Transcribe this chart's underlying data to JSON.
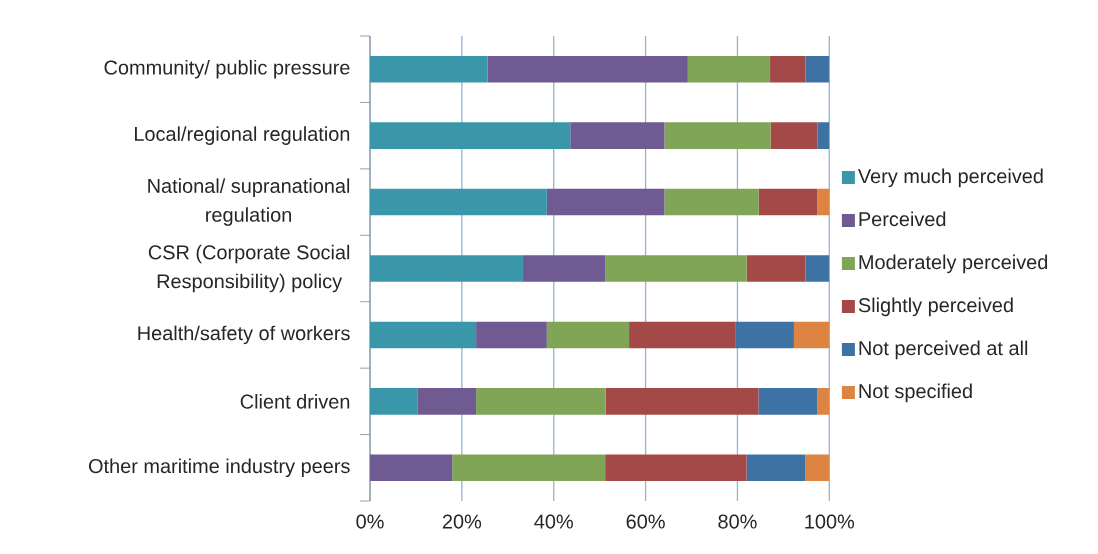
{
  "chart_data": {
    "type": "bar",
    "orientation": "horizontal",
    "stacked": true,
    "categories": [
      "Community/ public pressure",
      "Local/regional regulation",
      "National/ supranational regulation",
      "CSR (Corporate Social Responsibility) policy",
      "Health/safety of workers",
      "Client driven",
      "Other maritime industry peers"
    ],
    "series": [
      {
        "name": "Very much perceived",
        "color": "#3a97aa",
        "values": [
          25.6,
          43.6,
          38.5,
          33.3,
          23.1,
          10.3,
          0
        ]
      },
      {
        "name": "Perceived",
        "color": "#6f5b92",
        "values": [
          43.6,
          20.5,
          25.6,
          17.9,
          15.4,
          12.8,
          17.9
        ]
      },
      {
        "name": "Moderately perceived",
        "color": "#80a557",
        "values": [
          17.9,
          23.1,
          20.5,
          30.8,
          17.9,
          28.2,
          33.3
        ]
      },
      {
        "name": "Slightly perceived",
        "color": "#a34a48",
        "values": [
          7.7,
          10.2,
          12.8,
          12.8,
          23.1,
          33.3,
          30.8
        ]
      },
      {
        "name": "Not perceived at all",
        "color": "#3f72a4",
        "values": [
          5.2,
          2.6,
          0,
          5.2,
          12.8,
          12.8,
          12.8
        ]
      },
      {
        "name": "Not specified",
        "color": "#de8443",
        "values": [
          0,
          0,
          2.6,
          0,
          7.7,
          2.6,
          5.2
        ]
      }
    ],
    "xlim": [
      0,
      100
    ],
    "xticks": [
      {
        "value": 0,
        "label": "0%"
      },
      {
        "value": 20,
        "label": "20%"
      },
      {
        "value": 40,
        "label": "40%"
      },
      {
        "value": 60,
        "label": "60%"
      },
      {
        "value": 80,
        "label": "80%"
      },
      {
        "value": 100,
        "label": "100%"
      }
    ],
    "grid": "x",
    "legend": "right"
  }
}
